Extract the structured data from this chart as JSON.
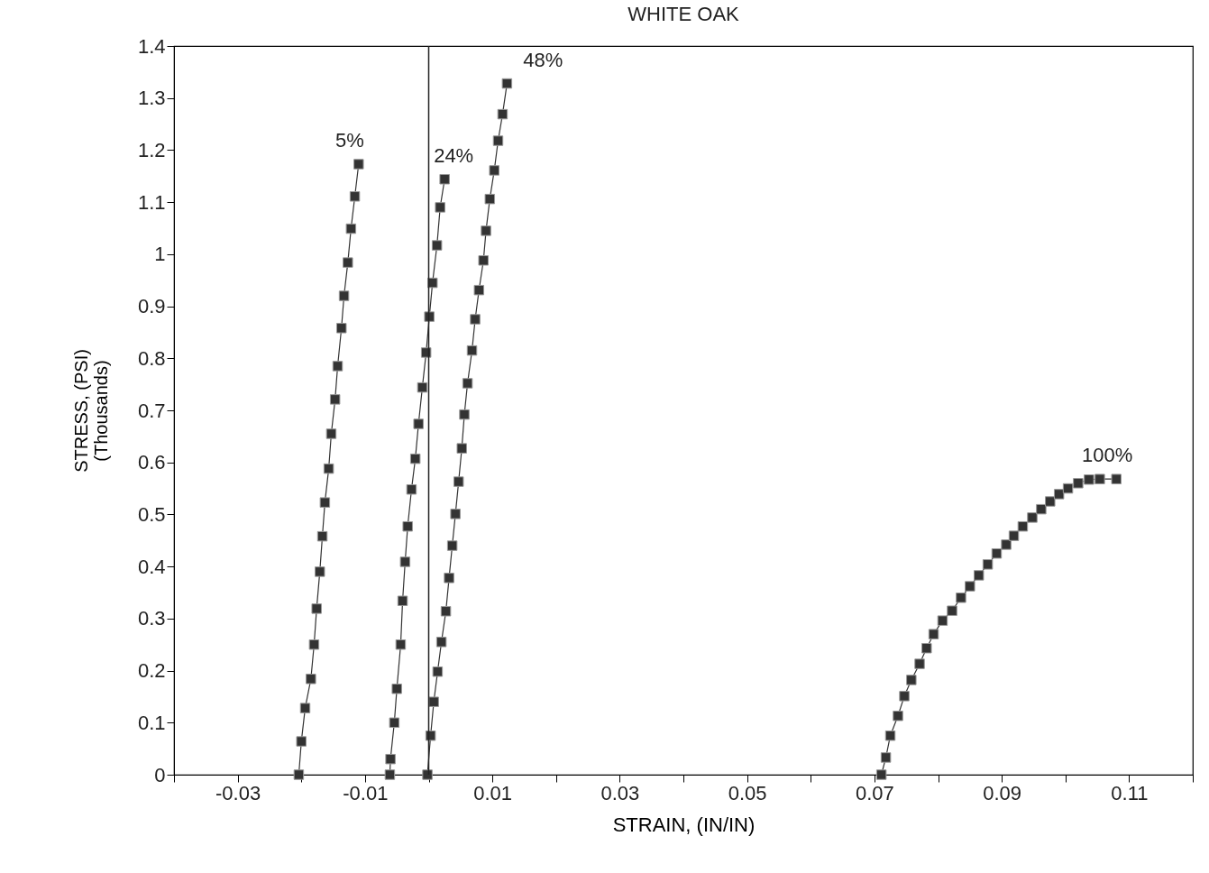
{
  "chart_data": {
    "type": "line",
    "title": "WHITE OAK",
    "xlabel": "STRAIN, (IN/IN)",
    "ylabel": "STRESS, (PSI)\n(Thousands)",
    "xlim": [
      -0.04,
      0.12
    ],
    "xticks": [
      {
        "value": -0.04,
        "label": null
      },
      -0.03,
      {
        "value": -0.02,
        "label": null
      },
      -0.01,
      {
        "value": 0,
        "label": null
      },
      0.01,
      {
        "value": 0.02,
        "label": null
      },
      0.03,
      {
        "value": 0.04,
        "label": null
      },
      0.05,
      {
        "value": 0.06,
        "label": null
      },
      0.07,
      {
        "value": 0.08,
        "label": null
      },
      0.09,
      {
        "value": 0.1,
        "label": null
      },
      0.11,
      {
        "value": 0.12,
        "label": null
      }
    ],
    "ylim": [
      0,
      1.4
    ],
    "yticks": [
      0,
      0.1,
      0.2,
      0.3,
      0.4,
      0.5,
      0.6,
      0.7,
      0.8,
      0.9,
      1,
      1.1,
      1.2,
      1.3,
      1.4
    ],
    "marker": "square",
    "line_style": "solid",
    "ref_lines": [
      {
        "axis": "x",
        "value": 0,
        "color": "#222222"
      }
    ],
    "series": [
      {
        "name": "5%",
        "color": "#333333",
        "x": [
          -0.0204,
          -0.02,
          -0.0194,
          -0.0185,
          -0.018,
          -0.0176,
          -0.0171,
          -0.0167,
          -0.0163,
          -0.0157,
          -0.0153,
          -0.0147,
          -0.0143,
          -0.0137,
          -0.0133,
          -0.0127,
          -0.0122,
          -0.0116,
          -0.011
        ],
        "values": [
          0,
          0.064,
          0.128,
          0.184,
          0.25,
          0.319,
          0.39,
          0.458,
          0.523,
          0.588,
          0.655,
          0.721,
          0.785,
          0.858,
          0.92,
          0.984,
          1.049,
          1.111,
          1.173
        ]
      },
      {
        "name": "24%",
        "color": "#333333",
        "x": [
          -0.0061,
          -0.006,
          -0.0054,
          -0.005,
          -0.0044,
          -0.0041,
          -0.0037,
          -0.0033,
          -0.0027,
          -0.0021,
          -0.0016,
          -0.001,
          -0.0004,
          0.0001,
          0.0006,
          0.0013,
          0.0018,
          0.0025
        ],
        "values": [
          0,
          0.03,
          0.1,
          0.165,
          0.25,
          0.334,
          0.409,
          0.477,
          0.548,
          0.607,
          0.674,
          0.744,
          0.811,
          0.88,
          0.945,
          1.017,
          1.09,
          1.144
        ]
      },
      {
        "name": "48%",
        "color": "#333333",
        "x": [
          -0.0002,
          0.0003,
          0.0008,
          0.0014,
          0.002,
          0.0027,
          0.0032,
          0.0037,
          0.0042,
          0.0047,
          0.0052,
          0.0056,
          0.0061,
          0.0068,
          0.0073,
          0.0079,
          0.0086,
          0.009,
          0.0096,
          0.0103,
          0.0109,
          0.0116,
          0.0123
        ],
        "values": [
          0,
          0.075,
          0.14,
          0.198,
          0.255,
          0.314,
          0.378,
          0.44,
          0.501,
          0.563,
          0.627,
          0.692,
          0.752,
          0.815,
          0.875,
          0.931,
          0.988,
          1.045,
          1.106,
          1.161,
          1.218,
          1.269,
          1.328
        ]
      },
      {
        "name": "100%",
        "color": "#333333",
        "x": [
          0.0711,
          0.0718,
          0.0725,
          0.0737,
          0.0747,
          0.0758,
          0.0771,
          0.0782,
          0.0793,
          0.0807,
          0.0822,
          0.0836,
          0.085,
          0.0864,
          0.0878,
          0.0892,
          0.0907,
          0.0919,
          0.0933,
          0.0948,
          0.0962,
          0.0976,
          0.099,
          0.1004,
          0.102,
          0.1037,
          0.1054,
          0.108
        ],
        "values": [
          0,
          0.033,
          0.075,
          0.113,
          0.151,
          0.182,
          0.213,
          0.243,
          0.27,
          0.296,
          0.315,
          0.34,
          0.362,
          0.383,
          0.404,
          0.425,
          0.442,
          0.459,
          0.477,
          0.494,
          0.51,
          0.525,
          0.539,
          0.55,
          0.56,
          0.567,
          0.568,
          0.568
        ]
      }
    ]
  }
}
